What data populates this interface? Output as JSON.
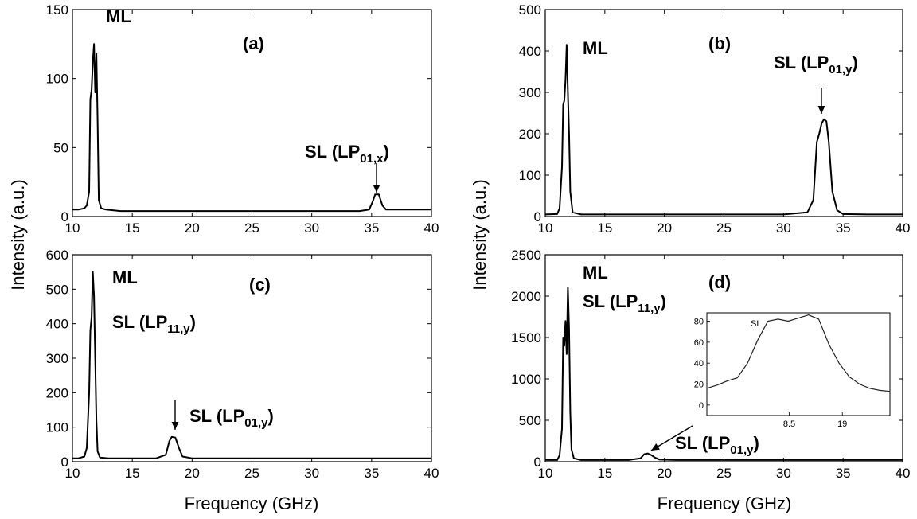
{
  "figure": {
    "ylabel": "Intensity (a.u.)",
    "xlabel": "Frequency (GHz)"
  },
  "chart_data": [
    {
      "type": "line",
      "panel": "(a)",
      "xlim": [
        10,
        40
      ],
      "ylim": [
        0,
        150
      ],
      "xticks": [
        "10",
        "15",
        "20",
        "25",
        "30",
        "35",
        "40"
      ],
      "yticks": [
        "0",
        "50",
        "100",
        "150"
      ],
      "xlabel": "",
      "ylabel": "Intensity (a.u.)",
      "annotations": [
        {
          "text": "ML"
        },
        {
          "text": "SL (LP",
          "sub": "01,x",
          "close": ")"
        }
      ],
      "series": [
        {
          "x": [
            10,
            10.5,
            11,
            11.2,
            11.4,
            11.5,
            11.6,
            11.7,
            11.8,
            11.9,
            12.0,
            12.1,
            12.2,
            12.4,
            12.8,
            14,
            16,
            18,
            20,
            22,
            24,
            26,
            28,
            30,
            32,
            34,
            34.8,
            35.1,
            35.3,
            35.6,
            35.9,
            36.2,
            37,
            38,
            39,
            40
          ],
          "y": [
            5,
            5,
            6,
            8,
            18,
            85,
            92,
            112,
            125,
            90,
            118,
            70,
            12,
            6,
            5,
            4,
            4,
            4,
            4,
            4,
            4,
            4,
            4,
            4,
            4,
            4,
            5,
            11,
            16,
            16,
            8,
            5,
            5,
            5,
            5,
            5
          ]
        }
      ]
    },
    {
      "type": "line",
      "panel": "(b)",
      "xlim": [
        10,
        40
      ],
      "ylim": [
        0,
        500
      ],
      "xticks": [
        "10",
        "15",
        "20",
        "25",
        "30",
        "35",
        "40"
      ],
      "yticks": [
        "0",
        "100",
        "200",
        "300",
        "400",
        "500"
      ],
      "xlabel": "",
      "ylabel": "",
      "annotations": [
        {
          "text": "ML"
        },
        {
          "text": "SL (LP",
          "sub": "01,y",
          "close": ")"
        }
      ],
      "series": [
        {
          "x": [
            10,
            11,
            11.2,
            11.4,
            11.5,
            11.6,
            11.7,
            11.8,
            11.9,
            12.0,
            12.1,
            12.3,
            13,
            15,
            20,
            25,
            30,
            32,
            32.5,
            32.8,
            33.0,
            33.2,
            33.4,
            33.6,
            33.8,
            34.1,
            34.5,
            35,
            37,
            40
          ],
          "y": [
            5,
            6,
            20,
            120,
            270,
            280,
            330,
            415,
            300,
            200,
            60,
            10,
            5,
            5,
            5,
            5,
            5,
            10,
            40,
            180,
            200,
            225,
            235,
            230,
            180,
            60,
            15,
            6,
            5,
            5
          ]
        }
      ]
    },
    {
      "type": "line",
      "panel": "(c)",
      "xlim": [
        10,
        40
      ],
      "ylim": [
        0,
        600
      ],
      "xticks": [
        "10",
        "15",
        "20",
        "25",
        "30",
        "35",
        "40"
      ],
      "yticks": [
        "0",
        "100",
        "200",
        "300",
        "400",
        "500",
        "600"
      ],
      "xlabel": "Frequency (GHz)",
      "ylabel": "",
      "annotations": [
        {
          "text": "ML"
        },
        {
          "text": "SL (LP",
          "sub": "11,y",
          "close": ")"
        },
        {
          "text": "SL (LP",
          "sub": "01,y",
          "close": ")"
        }
      ],
      "series": [
        {
          "x": [
            10,
            10.5,
            11,
            11.2,
            11.4,
            11.5,
            11.6,
            11.7,
            11.8,
            11.9,
            12.0,
            12.1,
            12.3,
            13,
            15,
            17,
            17.8,
            18.1,
            18.3,
            18.6,
            18.9,
            19.2,
            20,
            25,
            30,
            35,
            40
          ],
          "y": [
            10,
            10,
            15,
            40,
            200,
            380,
            420,
            550,
            480,
            300,
            120,
            30,
            12,
            10,
            10,
            10,
            20,
            60,
            72,
            70,
            40,
            15,
            10,
            10,
            10,
            10,
            10
          ]
        }
      ]
    },
    {
      "type": "line",
      "panel": "(d)",
      "xlim": [
        10,
        40
      ],
      "ylim": [
        0,
        2500
      ],
      "xticks": [
        "10",
        "15",
        "20",
        "25",
        "30",
        "35",
        "40"
      ],
      "yticks": [
        "0",
        "500",
        "1000",
        "1500",
        "2000",
        "2500"
      ],
      "xlabel": "Frequency (GHz)",
      "ylabel": "",
      "annotations": [
        {
          "text": "ML"
        },
        {
          "text": "SL (LP",
          "sub": "11,y",
          "close": ")"
        },
        {
          "text": "SL (LP",
          "sub": "01,y",
          "close": ")"
        }
      ],
      "series": [
        {
          "x": [
            10,
            11,
            11.2,
            11.4,
            11.5,
            11.6,
            11.7,
            11.8,
            11.9,
            12.0,
            12.1,
            12.2,
            12.4,
            13,
            15,
            17,
            18,
            18.3,
            18.6,
            18.9,
            19.2,
            19.6,
            21,
            25,
            30,
            35,
            40
          ],
          "y": [
            20,
            20,
            80,
            400,
            1500,
            1400,
            1700,
            1300,
            2100,
            1600,
            600,
            150,
            40,
            20,
            20,
            20,
            40,
            90,
            100,
            80,
            50,
            25,
            20,
            20,
            20,
            20,
            20
          ]
        }
      ],
      "inset": {
        "label": "SL",
        "xticks": [
          "8.5",
          "19"
        ],
        "yticks": [
          "0",
          "20",
          "40",
          "60",
          "80"
        ],
        "ylim": [
          -10,
          88
        ],
        "series": [
          {
            "y": [
              16,
              19,
              23,
              26,
              40,
              62,
              80,
              82,
              80,
              83,
              86,
              82,
              58,
              40,
              27,
              20,
              16,
              14,
              13
            ]
          }
        ]
      }
    }
  ]
}
